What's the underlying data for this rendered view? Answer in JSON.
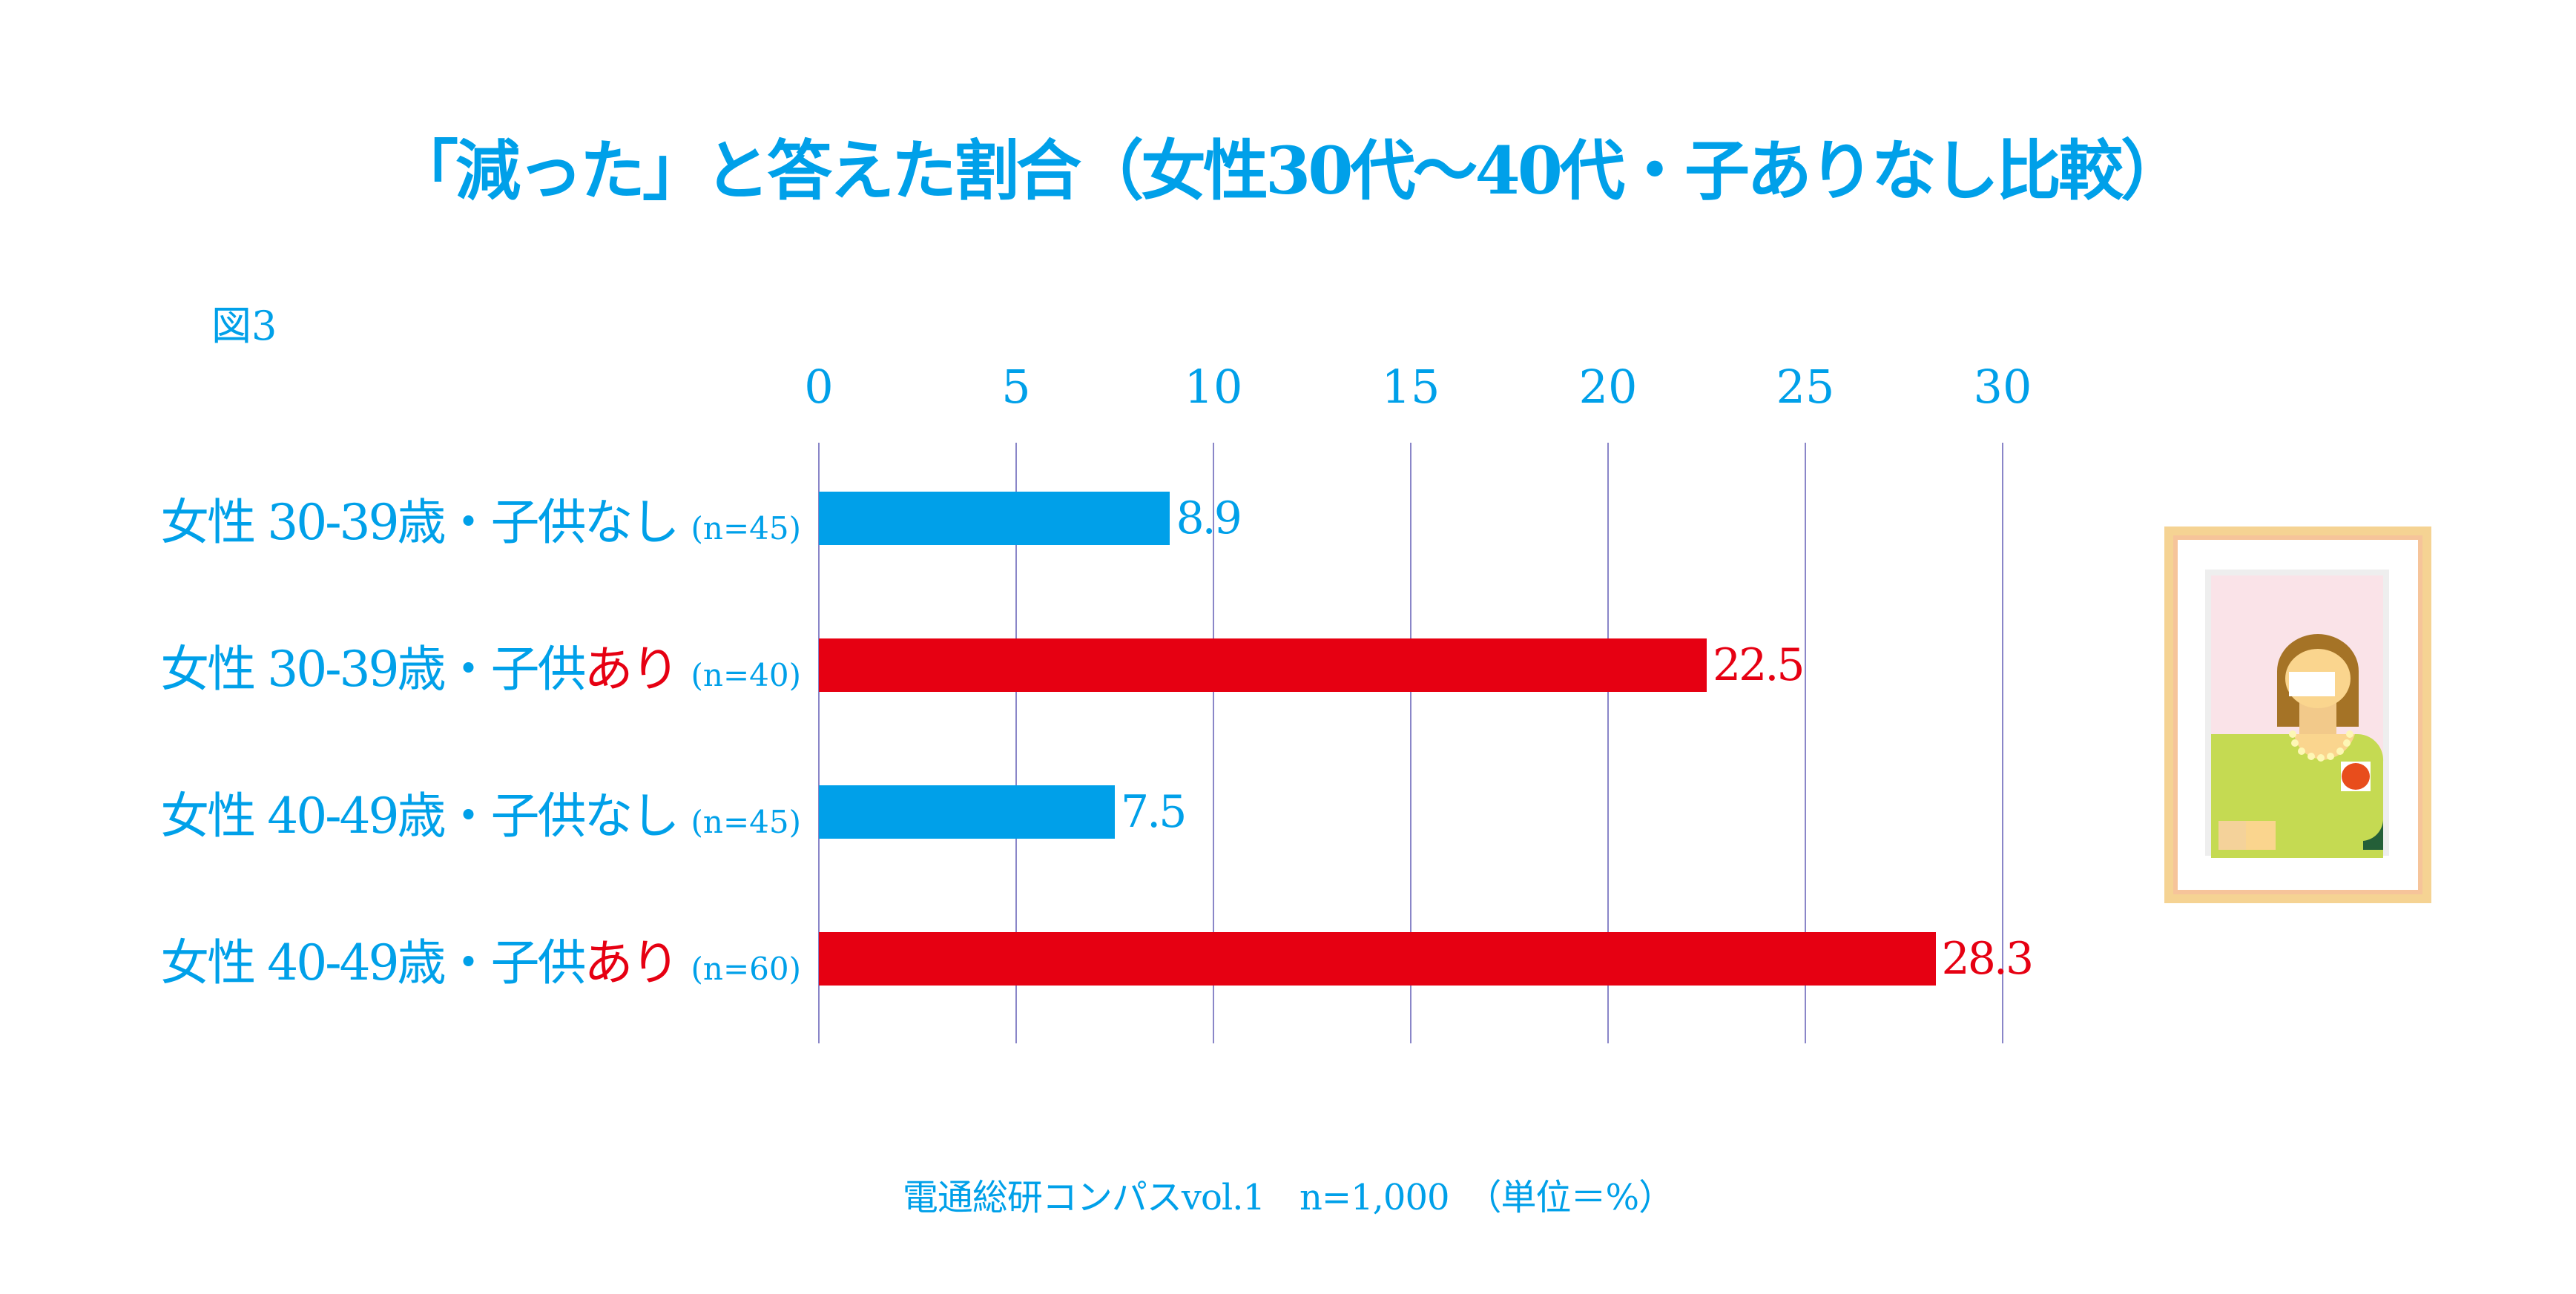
{
  "chart_data": {
    "type": "bar",
    "orientation": "horizontal",
    "title": "「減った」と答えた割合（女性30代〜40代・子ありなし比較）",
    "figure_label": "図3",
    "xlim": [
      0,
      30
    ],
    "xticks": [
      "0",
      "5",
      "10",
      "15",
      "20",
      "25",
      "30"
    ],
    "grid": true,
    "categories": [
      {
        "prefix": "女性 30-39歳・子供",
        "suffix": "なし",
        "n": "(n=45)",
        "value": 8.9,
        "label": "8.9",
        "group": "なし"
      },
      {
        "prefix": "女性 30-39歳・子供",
        "suffix": "あり",
        "n": "(n=40)",
        "value": 22.5,
        "label": "22.5",
        "group": "あり"
      },
      {
        "prefix": "女性 40-49歳・子供",
        "suffix": "なし",
        "n": "(n=45)",
        "value": 7.5,
        "label": "7.5",
        "group": "なし"
      },
      {
        "prefix": "女性 40-49歳・子供",
        "suffix": "あり",
        "n": "(n=60)",
        "value": 28.3,
        "label": "28.3",
        "group": "あり"
      }
    ],
    "colors": {
      "なし": "#00a0e9",
      "あり": "#e60012",
      "grid": "#8a86c8",
      "text": "#00a0e9"
    },
    "footer": "電通総研コンパスvol.1　n=1,000　（単位＝%）"
  }
}
